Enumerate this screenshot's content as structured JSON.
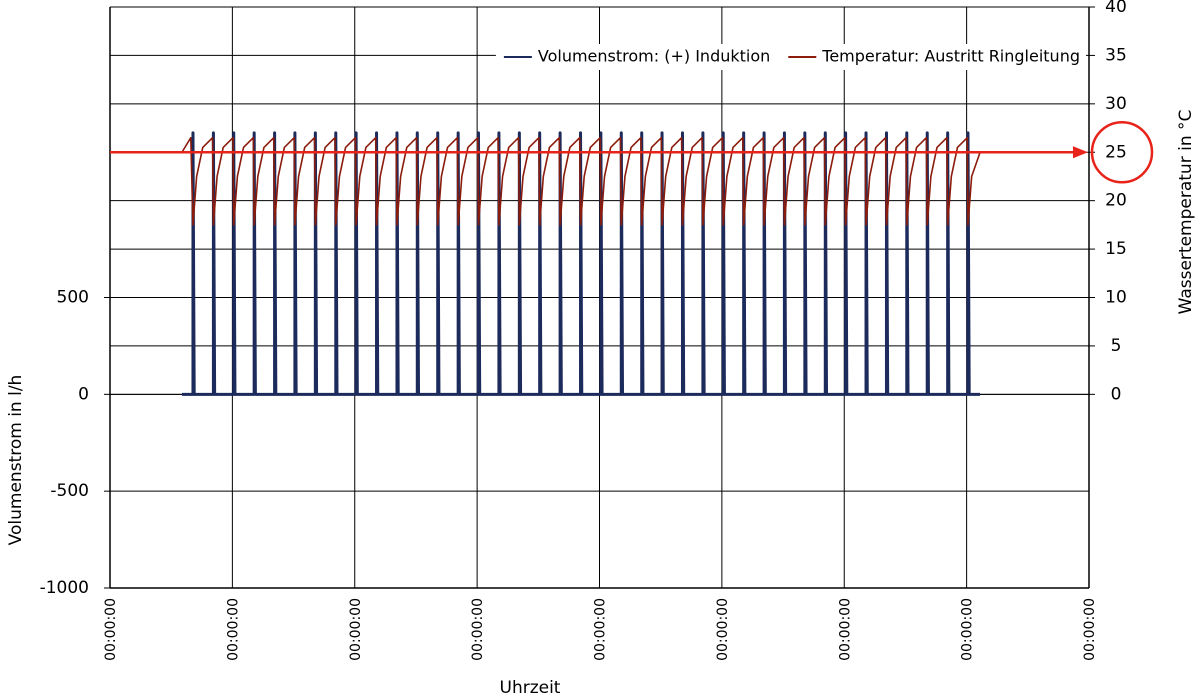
{
  "chart_data": {
    "type": "line",
    "x_label": "Uhrzeit",
    "y_label": "Volumenstrom  in l/h",
    "y2_label": "Wassertemperatur  in °C",
    "xlim": [
      0,
      8
    ],
    "xticks": [
      {
        "value": 0,
        "label": "00:00:00"
      },
      {
        "value": 1,
        "label": "00:00:00"
      },
      {
        "value": 2,
        "label": "00:00:00"
      },
      {
        "value": 3,
        "label": "00:00:00"
      },
      {
        "value": 4,
        "label": "00:00:00"
      },
      {
        "value": 5,
        "label": "00:00:00"
      },
      {
        "value": 6,
        "label": "00:00:00"
      },
      {
        "value": 7,
        "label": "00:00:00"
      },
      {
        "value": 8,
        "label": "00:00:00"
      }
    ],
    "ylim": [
      -1000,
      2000
    ],
    "yticks": [
      -1000,
      -500,
      0,
      500
    ],
    "y2lim": [
      -20,
      40
    ],
    "y2ticks": [
      0,
      5,
      10,
      15,
      20,
      25,
      30,
      35,
      40
    ],
    "grid": true,
    "legend": "upper right",
    "reference_line": {
      "value": 25,
      "axis": "y2",
      "color": "#e8231a"
    },
    "series": [
      {
        "name": "Volumenstrom: (+) Induktion",
        "color": "#1c2a5c",
        "axis": "y",
        "x": [
          0.588,
          0.678,
          0.678,
          0.688,
          0.845,
          0.845,
          0.855,
          1.011,
          1.011,
          1.021,
          1.178,
          1.178,
          1.188,
          1.345,
          1.345,
          1.355,
          1.511,
          1.511,
          1.521,
          1.678,
          1.678,
          1.688,
          1.845,
          1.845,
          1.855,
          2.011,
          2.011,
          2.021,
          2.178,
          2.178,
          2.188,
          2.345,
          2.345,
          2.355,
          2.511,
          2.511,
          2.521,
          2.678,
          2.678,
          2.688,
          2.845,
          2.845,
          2.855,
          3.011,
          3.011,
          3.021,
          3.178,
          3.178,
          3.188,
          3.345,
          3.345,
          3.355,
          3.511,
          3.511,
          3.521,
          3.678,
          3.678,
          3.688,
          3.845,
          3.845,
          3.855,
          4.011,
          4.011,
          4.021,
          4.178,
          4.178,
          4.188,
          4.345,
          4.345,
          4.355,
          4.511,
          4.511,
          4.521,
          4.678,
          4.678,
          4.688,
          4.845,
          4.845,
          4.855,
          5.011,
          5.011,
          5.021,
          5.178,
          5.178,
          5.188,
          5.345,
          5.345,
          5.355,
          5.511,
          5.511,
          5.521,
          5.678,
          5.678,
          5.688,
          5.845,
          5.845,
          5.855,
          6.011,
          6.011,
          6.021,
          6.178,
          6.178,
          6.188,
          6.345,
          6.345,
          6.355,
          6.511,
          6.511,
          6.521,
          6.678,
          6.678,
          6.688,
          6.845,
          6.845,
          6.855,
          7.011,
          7.011,
          7.021,
          7.11
        ],
        "values": [
          0,
          0,
          1350,
          0,
          0,
          1350,
          0,
          0,
          1350,
          0,
          0,
          1350,
          0,
          0,
          1350,
          0,
          0,
          1350,
          0,
          0,
          1350,
          0,
          0,
          1350,
          0,
          0,
          1350,
          0,
          0,
          1350,
          0,
          0,
          1350,
          0,
          0,
          1350,
          0,
          0,
          1350,
          0,
          0,
          1350,
          0,
          0,
          1350,
          0,
          0,
          1350,
          0,
          0,
          1350,
          0,
          0,
          1350,
          0,
          0,
          1350,
          0,
          0,
          1350,
          0,
          0,
          1350,
          0,
          0,
          1350,
          0,
          0,
          1350,
          0,
          0,
          1350,
          0,
          0,
          1350,
          0,
          0,
          1350,
          0,
          0,
          1350,
          0,
          0,
          1350,
          0,
          0,
          1350,
          0,
          0,
          1350,
          0,
          0,
          1350,
          0,
          0,
          1350,
          0,
          0,
          1350,
          0,
          0,
          1350,
          0,
          0,
          1350,
          0,
          0,
          1350,
          0,
          0,
          1350,
          0,
          0,
          1350,
          0,
          0,
          1350,
          0,
          0
        ]
      },
      {
        "name": "Temperatur: Austritt Ringleitung",
        "color": "#8b1c0c",
        "axis": "y2",
        "x": [
          0.588,
          0.66,
          0.678,
          0.708,
          0.758,
          0.838,
          0.845,
          0.875,
          0.925,
          1.005,
          1.011,
          1.041,
          1.091,
          1.171,
          1.178,
          1.208,
          1.258,
          1.338,
          1.345,
          1.375,
          1.425,
          1.505,
          1.511,
          1.541,
          1.591,
          1.671,
          1.678,
          1.708,
          1.758,
          1.838,
          1.845,
          1.875,
          1.925,
          2.005,
          2.011,
          2.041,
          2.091,
          2.171,
          2.178,
          2.208,
          2.258,
          2.338,
          2.345,
          2.375,
          2.425,
          2.505,
          2.511,
          2.541,
          2.591,
          2.671,
          2.678,
          2.708,
          2.758,
          2.838,
          2.845,
          2.875,
          2.925,
          3.005,
          3.011,
          3.041,
          3.091,
          3.171,
          3.178,
          3.208,
          3.258,
          3.338,
          3.345,
          3.375,
          3.425,
          3.505,
          3.511,
          3.541,
          3.591,
          3.671,
          3.678,
          3.708,
          3.758,
          3.838,
          3.845,
          3.875,
          3.925,
          4.005,
          4.011,
          4.041,
          4.091,
          4.171,
          4.178,
          4.208,
          4.258,
          4.338,
          4.345,
          4.375,
          4.425,
          4.505,
          4.511,
          4.541,
          4.591,
          4.671,
          4.678,
          4.708,
          4.758,
          4.838,
          4.845,
          4.875,
          4.925,
          5.005,
          5.011,
          5.041,
          5.091,
          5.171,
          5.178,
          5.208,
          5.258,
          5.338,
          5.345,
          5.375,
          5.425,
          5.505,
          5.511,
          5.541,
          5.591,
          5.671,
          5.678,
          5.708,
          5.758,
          5.838,
          5.845,
          5.875,
          5.925,
          6.005,
          6.011,
          6.041,
          6.091,
          6.171,
          6.178,
          6.208,
          6.258,
          6.338,
          6.345,
          6.375,
          6.425,
          6.505,
          6.511,
          6.541,
          6.591,
          6.671,
          6.678,
          6.708,
          6.758,
          6.838,
          6.845,
          6.875,
          6.925,
          7.005,
          7.011,
          7.041,
          7.11
        ],
        "values": [
          25,
          26.5,
          17.5,
          22.5,
          25.5,
          26.5,
          17.5,
          22.5,
          25.5,
          26.5,
          17.5,
          22.5,
          25.5,
          26.5,
          17.5,
          22.5,
          25.5,
          26.5,
          17.5,
          22.5,
          25.5,
          26.5,
          17.5,
          22.5,
          25.5,
          26.5,
          17.5,
          22.5,
          25.5,
          26.5,
          17.5,
          22.5,
          25.5,
          26.5,
          17.5,
          22.5,
          25.5,
          26.5,
          17.5,
          22.5,
          25.5,
          26.5,
          17.5,
          22.5,
          25.5,
          26.5,
          17.5,
          22.5,
          25.5,
          26.5,
          17.5,
          22.5,
          25.5,
          26.5,
          17.5,
          22.5,
          25.5,
          26.5,
          17.5,
          22.5,
          25.5,
          26.5,
          17.5,
          22.5,
          25.5,
          26.5,
          17.5,
          22.5,
          25.5,
          26.5,
          17.5,
          22.5,
          25.5,
          26.5,
          17.5,
          22.5,
          25.5,
          26.5,
          17.5,
          22.5,
          25.5,
          26.5,
          17.5,
          22.5,
          25.5,
          26.5,
          17.5,
          22.5,
          25.5,
          26.5,
          17.5,
          22.5,
          25.5,
          26.5,
          17.5,
          22.5,
          25.5,
          26.5,
          17.5,
          22.5,
          25.5,
          26.5,
          17.5,
          22.5,
          25.5,
          26.5,
          17.5,
          22.5,
          25.5,
          26.5,
          17.5,
          22.5,
          25.5,
          26.5,
          17.5,
          22.5,
          25.5,
          26.5,
          17.5,
          22.5,
          25.5,
          26.5,
          17.5,
          22.5,
          25.5,
          26.5,
          17.5,
          22.5,
          25.5,
          26.5,
          17.5,
          22.5,
          25.5,
          26.5,
          17.5,
          22.5,
          25.5,
          26.5,
          17.5,
          22.5,
          25.5,
          26.5,
          17.5,
          22.5,
          25.5,
          26.5,
          17.5,
          22.5,
          25.5,
          26.5,
          17.5,
          22.5,
          25.5,
          26.5,
          17.5,
          22.5,
          25
        ]
      }
    ]
  }
}
